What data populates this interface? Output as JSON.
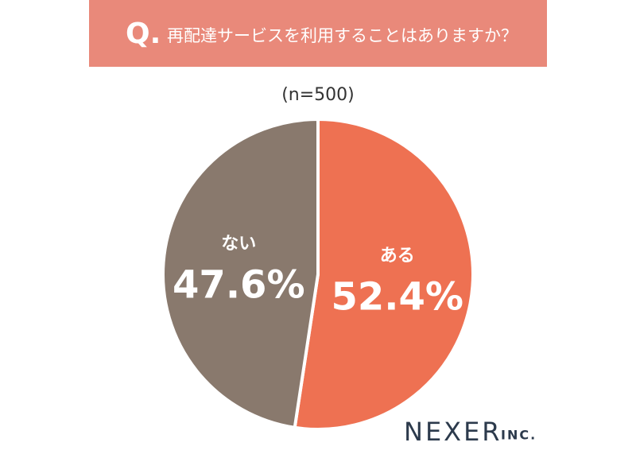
{
  "chart_data": {
    "type": "pie",
    "question_mark": "Q.",
    "title": "再配達サービスを利用することはありますか？",
    "subtitle": "(n=500)",
    "categories": [
      "ある",
      "ない"
    ],
    "values": [
      52.4,
      47.6
    ],
    "value_labels": [
      "52.4%",
      "47.6%"
    ],
    "colors": [
      "#ee7152",
      "#89796d"
    ],
    "header_color": "#e9897a",
    "logo": "NEXER",
    "logo_suffix": "INC."
  }
}
